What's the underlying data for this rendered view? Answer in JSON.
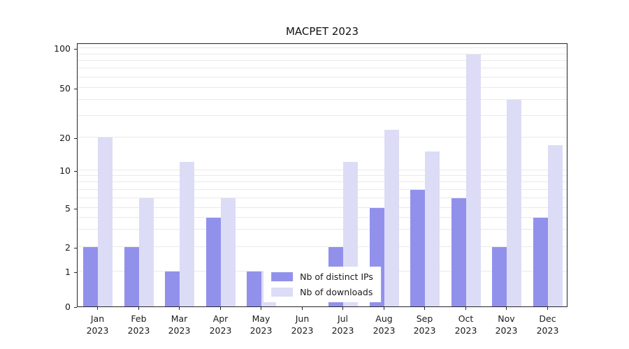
{
  "chart_data": {
    "type": "bar",
    "title": "MACPET 2023",
    "categories": [
      "Jan",
      "Feb",
      "Mar",
      "Apr",
      "May",
      "Jun",
      "Jul",
      "Aug",
      "Sep",
      "Oct",
      "Nov",
      "Dec"
    ],
    "year": "2023",
    "series": [
      {
        "name": "Nb of distinct IPs",
        "color": "#9191ec",
        "values": [
          2,
          2,
          1,
          4,
          1,
          0,
          2,
          5,
          7,
          6,
          2,
          4
        ]
      },
      {
        "name": "Nb of downloads",
        "color": "#dcdcf6",
        "values": [
          20,
          6,
          12,
          6,
          1,
          0,
          12,
          23,
          15,
          90,
          40,
          17
        ]
      }
    ],
    "yscale": "symlog",
    "ylim": [
      0,
      115
    ],
    "yticks": [
      0,
      1,
      2,
      5,
      10,
      20,
      50,
      100
    ],
    "grid": true,
    "grid_values": [
      1,
      2,
      3,
      4,
      5,
      6,
      7,
      8,
      9,
      10,
      20,
      30,
      40,
      50,
      60,
      70,
      80,
      90,
      100
    ],
    "scale_anchors": [
      [
        0,
        0
      ],
      [
        1,
        50
      ],
      [
        2,
        85
      ],
      [
        5,
        141
      ],
      [
        10,
        195
      ],
      [
        20,
        242
      ],
      [
        50,
        313
      ],
      [
        100,
        370
      ]
    ],
    "legend": {
      "position": "lower center",
      "entries": [
        "Nb of distinct IPs",
        "Nb of downloads"
      ]
    }
  }
}
